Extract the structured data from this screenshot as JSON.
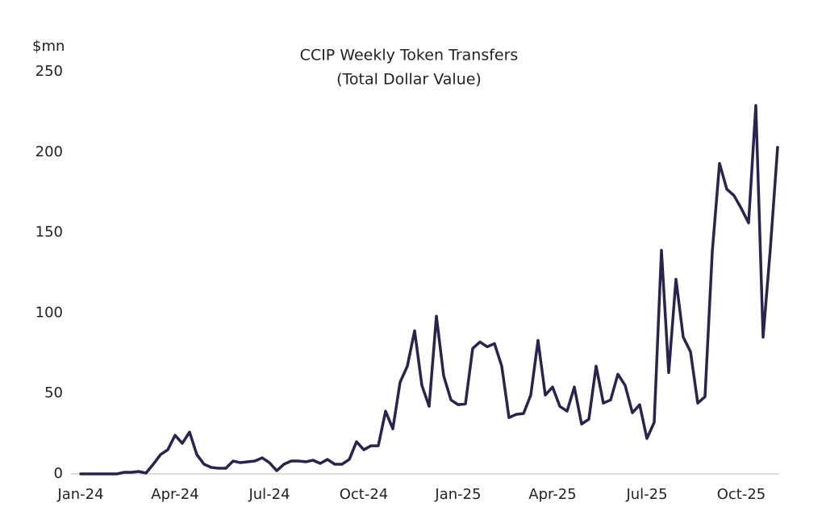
{
  "chart_data": {
    "type": "line",
    "title": "CCIP Weekly Token Transfers",
    "subtitle": "(Total Dollar Value)",
    "ylabel": "$mn",
    "color": "#2b2250",
    "categories": [
      "Jan-24",
      null,
      null,
      null,
      null,
      null,
      null,
      null,
      null,
      null,
      null,
      null,
      null,
      "Apr-24",
      null,
      null,
      null,
      null,
      null,
      null,
      null,
      null,
      null,
      null,
      null,
      null,
      "Jul-24",
      null,
      null,
      null,
      null,
      null,
      null,
      null,
      null,
      null,
      null,
      null,
      null,
      "Oct-24",
      null,
      null,
      null,
      null,
      null,
      null,
      null,
      null,
      null,
      null,
      null,
      null,
      "Jan-25",
      null,
      null,
      null,
      null,
      null,
      null,
      null,
      null,
      null,
      null,
      null,
      null,
      "Apr-25",
      null,
      null,
      null,
      null,
      null,
      null,
      null,
      null,
      null,
      null,
      null,
      null,
      "Jul-25",
      null,
      null,
      null,
      null,
      null,
      null,
      null,
      null,
      null,
      null,
      null,
      null,
      "Oct-25",
      null,
      null,
      null,
      null,
      null
    ],
    "values": [
      0,
      0,
      0,
      0,
      0,
      0,
      1,
      1,
      1.5,
      0.5,
      6,
      12,
      15,
      24,
      19,
      26,
      12,
      6,
      4,
      3.5,
      3.5,
      8,
      7,
      7.5,
      8,
      10,
      7,
      2,
      6,
      8,
      8,
      7.5,
      8.5,
      6.5,
      9,
      6,
      6,
      9,
      20,
      15,
      17.5,
      17.5,
      39,
      28,
      57,
      67,
      89,
      55,
      42,
      98,
      61,
      46,
      43,
      43.5,
      78,
      82,
      79,
      81,
      67,
      35,
      37,
      37.5,
      49,
      83,
      49,
      54,
      42,
      39,
      54,
      31,
      34,
      67,
      44,
      46,
      62,
      55,
      38,
      43,
      22,
      32,
      139,
      63,
      121,
      85,
      76,
      44,
      48,
      138,
      193,
      177,
      173,
      165,
      156,
      229,
      85,
      140,
      203
    ],
    "ylim": [
      0,
      250
    ],
    "yticks": [
      0,
      50,
      100,
      150,
      200,
      250
    ],
    "grid": false
  }
}
